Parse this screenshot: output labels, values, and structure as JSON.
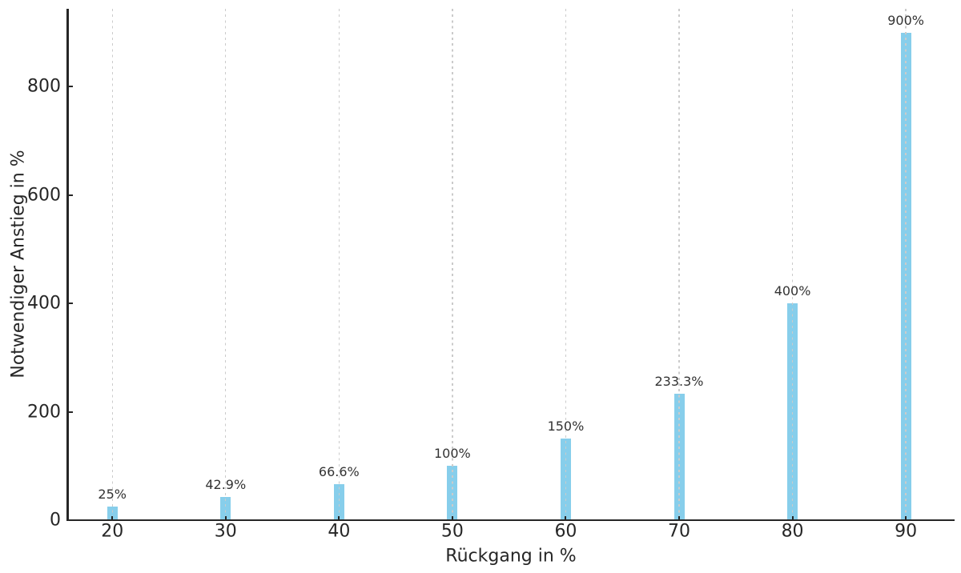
{
  "chart_data": {
    "type": "bar",
    "title": "",
    "xlabel": "Rückgang in %",
    "ylabel": "Notwendiger Anstieg in %",
    "categories": [
      20,
      30,
      40,
      50,
      60,
      70,
      80,
      90
    ],
    "values": [
      25,
      42.9,
      66.6,
      100,
      150,
      233.3,
      400,
      900
    ],
    "bar_labels": [
      "25%",
      "42.9%",
      "66.6%",
      "100%",
      "150%",
      "233.3%",
      "400%",
      "900%"
    ],
    "yticks": [
      0,
      200,
      400,
      600,
      800
    ],
    "ylim": [
      0,
      944
    ],
    "xlim": [
      16.1,
      94.3
    ],
    "grid": "vertical-dashed",
    "legend": "none",
    "colors": {
      "bar": "#87CEEB",
      "grid": "#cbcbcb",
      "axis": "#262626",
      "tick_text": "#262626",
      "bar_label_text": "#333333",
      "background": "#ffffff"
    }
  }
}
